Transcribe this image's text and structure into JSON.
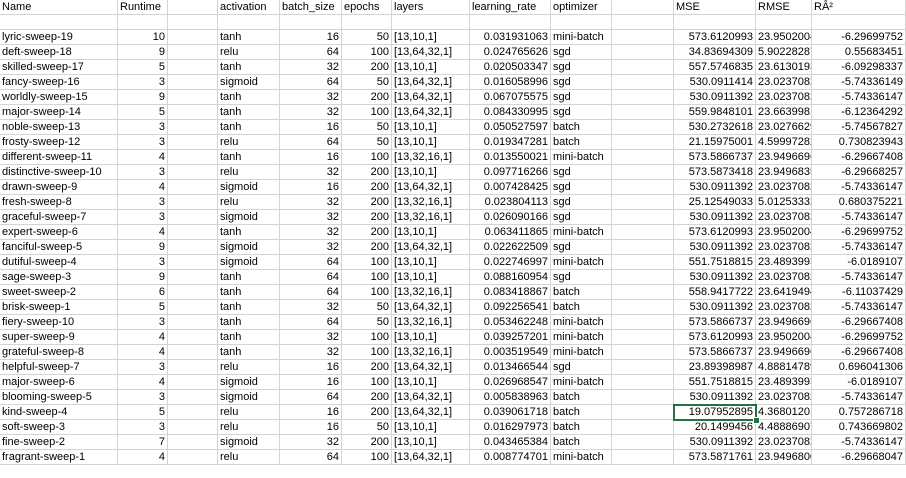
{
  "headers": [
    "Name",
    "Runtime",
    "",
    "activation",
    "batch_size",
    "epochs",
    "layers",
    "learning_rate",
    "optimizer",
    "",
    "MSE",
    "RMSE",
    "RÂ²"
  ],
  "rows": [
    [
      "",
      "",
      "",
      "",
      "",
      "",
      "",
      "",
      "",
      "",
      "",
      "",
      ""
    ],
    [
      "lyric-sweep-19",
      "10",
      "",
      "tanh",
      "16",
      "50",
      "[13,10,1]",
      "0.031931063",
      "mini-batch",
      "",
      "573.6120993",
      "23.9502004",
      "-6.29699752"
    ],
    [
      "deft-sweep-18",
      "9",
      "",
      "relu",
      "64",
      "100",
      "[13,64,32,1]",
      "0.024765626",
      "sgd",
      "",
      "34.83694309",
      "5.902282871",
      "0.55683451"
    ],
    [
      "skilled-sweep-17",
      "5",
      "",
      "tanh",
      "32",
      "200",
      "[13,10,1]",
      "0.020503347",
      "sgd",
      "",
      "557.5746835",
      "23.61301937",
      "-6.09298337"
    ],
    [
      "fancy-sweep-16",
      "3",
      "",
      "sigmoid",
      "64",
      "50",
      "[13,64,32,1]",
      "0.016058996",
      "sgd",
      "",
      "530.0911414",
      "23.02370825",
      "-5.74336149"
    ],
    [
      "worldly-sweep-15",
      "9",
      "",
      "tanh",
      "32",
      "200",
      "[13,64,32,1]",
      "0.067075575",
      "sgd",
      "",
      "530.0911392",
      "23.0237082",
      "-5.74336147"
    ],
    [
      "major-sweep-14",
      "5",
      "",
      "tanh",
      "32",
      "100",
      "[13,64,32,1]",
      "0.084330995",
      "sgd",
      "",
      "559.9848101",
      "23.66399819",
      "-6.12364292"
    ],
    [
      "noble-sweep-13",
      "3",
      "",
      "tanh",
      "16",
      "50",
      "[13,10,1]",
      "0.050527597",
      "batch",
      "",
      "530.2732618",
      "23.02766297",
      "-5.74567827"
    ],
    [
      "frosty-sweep-12",
      "3",
      "",
      "relu",
      "64",
      "50",
      "[13,10,1]",
      "0.019347281",
      "batch",
      "",
      "21.15975001",
      "4.599972828",
      "0.730823943"
    ],
    [
      "different-sweep-11",
      "4",
      "",
      "tanh",
      "16",
      "100",
      "[13,32,16,1]",
      "0.013550021",
      "mini-batch",
      "",
      "573.5866737",
      "23.9496696",
      "-6.29667408"
    ],
    [
      "distinctive-sweep-10",
      "3",
      "",
      "relu",
      "32",
      "200",
      "[13,10,1]",
      "0.097716266",
      "sgd",
      "",
      "573.5873418",
      "23.94968354",
      "-6.29668257"
    ],
    [
      "drawn-sweep-9",
      "4",
      "",
      "sigmoid",
      "16",
      "200",
      "[13,64,32,1]",
      "0.007428425",
      "sgd",
      "",
      "530.0911392",
      "23.0237082",
      "-5.74336147"
    ],
    [
      "fresh-sweep-8",
      "3",
      "",
      "relu",
      "32",
      "200",
      "[13,32,16,1]",
      "0.023804113",
      "sgd",
      "",
      "25.12549033",
      "5.012533325",
      "0.680375221"
    ],
    [
      "graceful-sweep-7",
      "3",
      "",
      "sigmoid",
      "32",
      "200",
      "[13,32,16,1]",
      "0.026090166",
      "sgd",
      "",
      "530.0911392",
      "23.0237082",
      "-5.74336147"
    ],
    [
      "expert-sweep-6",
      "4",
      "",
      "tanh",
      "32",
      "200",
      "[13,10,1]",
      "0.063411865",
      "mini-batch",
      "",
      "573.6120993",
      "23.9502004",
      "-6.29699752"
    ],
    [
      "fanciful-sweep-5",
      "9",
      "",
      "sigmoid",
      "32",
      "200",
      "[13,64,32,1]",
      "0.022622509",
      "sgd",
      "",
      "530.0911392",
      "23.0237082",
      "-5.74336147"
    ],
    [
      "dutiful-sweep-4",
      "3",
      "",
      "sigmoid",
      "64",
      "100",
      "[13,10,1]",
      "0.022746997",
      "mini-batch",
      "",
      "551.7518815",
      "23.48939934",
      "-6.0189107"
    ],
    [
      "sage-sweep-3",
      "9",
      "",
      "tanh",
      "64",
      "100",
      "[13,10,1]",
      "0.088160954",
      "sgd",
      "",
      "530.0911392",
      "23.0237082",
      "-5.74336147"
    ],
    [
      "sweet-sweep-2",
      "6",
      "",
      "tanh",
      "64",
      "100",
      "[13,32,16,1]",
      "0.083418867",
      "batch",
      "",
      "558.9417722",
      "23.64194942",
      "-6.11037429"
    ],
    [
      "brisk-sweep-1",
      "5",
      "",
      "tanh",
      "32",
      "50",
      "[13,64,32,1]",
      "0.092256541",
      "batch",
      "",
      "530.0911392",
      "23.0237082",
      "-5.74336147"
    ],
    [
      "fiery-sweep-10",
      "3",
      "",
      "tanh",
      "64",
      "50",
      "[13,32,16,1]",
      "0.053462248",
      "mini-batch",
      "",
      "573.5866737",
      "23.9496696",
      "-6.29667408"
    ],
    [
      "super-sweep-9",
      "4",
      "",
      "tanh",
      "32",
      "100",
      "[13,10,1]",
      "0.039257201",
      "mini-batch",
      "",
      "573.6120993",
      "23.9502004",
      "-6.29699752"
    ],
    [
      "grateful-sweep-8",
      "4",
      "",
      "tanh",
      "32",
      "100",
      "[13,32,16,1]",
      "0.003519549",
      "mini-batch",
      "",
      "573.5866737",
      "23.9496696",
      "-6.29667408"
    ],
    [
      "helpful-sweep-7",
      "3",
      "",
      "relu",
      "16",
      "200",
      "[13,64,32,1]",
      "0.013466544",
      "sgd",
      "",
      "23.89398987",
      "4.888147897",
      "0.696041306"
    ],
    [
      "major-sweep-6",
      "4",
      "",
      "sigmoid",
      "16",
      "100",
      "[13,10,1]",
      "0.026968547",
      "mini-batch",
      "",
      "551.7518815",
      "23.48939934",
      "-6.0189107"
    ],
    [
      "blooming-sweep-5",
      "3",
      "",
      "sigmoid",
      "64",
      "200",
      "[13,64,32,1]",
      "0.005838963",
      "batch",
      "",
      "530.0911392",
      "23.0237082",
      "-5.74336147"
    ],
    [
      "kind-sweep-4",
      "5",
      "",
      "relu",
      "16",
      "200",
      "[13,64,32,1]",
      "0.039061718",
      "batch",
      "",
      "19.07952895",
      "4.368012014",
      "0.757286718"
    ],
    [
      "soft-sweep-3",
      "3",
      "",
      "relu",
      "16",
      "50",
      "[13,10,1]",
      "0.016297973",
      "batch",
      "",
      "20.1499456",
      "4.488869078",
      "0.743669802"
    ],
    [
      "fine-sweep-2",
      "7",
      "",
      "sigmoid",
      "32",
      "200",
      "[13,10,1]",
      "0.043465384",
      "batch",
      "",
      "530.0911392",
      "23.0237082",
      "-5.74336147"
    ],
    [
      "fragrant-sweep-1",
      "4",
      "",
      "relu",
      "64",
      "100",
      "[13,64,32,1]",
      "0.008774701",
      "mini-batch",
      "",
      "573.5871761",
      "23.94968008",
      "-6.29668047"
    ]
  ],
  "selected_cell": {
    "row": 26,
    "col": 10
  }
}
